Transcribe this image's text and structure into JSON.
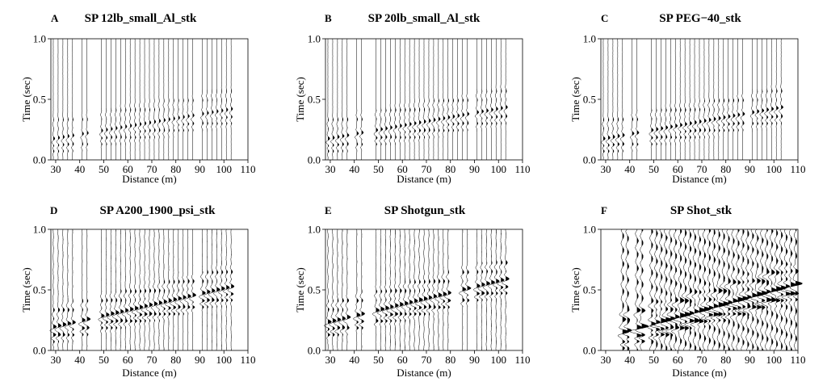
{
  "chart_data": [
    {
      "type": "scatter",
      "panel_label": "A",
      "title": "SP 12lb_small_Al_stk",
      "xlabel": "Distance (m)",
      "ylabel": "Time (sec)",
      "xlim": [
        28,
        110
      ],
      "ylim": [
        0.0,
        1.0
      ],
      "x_ticks": [
        30,
        40,
        50,
        60,
        70,
        80,
        90,
        100,
        110
      ],
      "y_ticks": [
        0.0,
        0.5,
        1.0
      ],
      "y_inverted": true,
      "trace_offsets_m": [
        29,
        31,
        33,
        35,
        37,
        41,
        43,
        49,
        51,
        53,
        55,
        57,
        59,
        61,
        63,
        65,
        67,
        69,
        71,
        73,
        75,
        77,
        79,
        81,
        83,
        85,
        87,
        91,
        93,
        95,
        97,
        99,
        101,
        103
      ],
      "arrival_start_s": 0.16,
      "moveout_s_per_m": 0.0033,
      "intensity": 0.45,
      "max_time_s": 0.6
    },
    {
      "type": "scatter",
      "panel_label": "B",
      "title": "SP 20lb_small_Al_stk",
      "xlabel": "Distance (m)",
      "ylabel": "Time (sec)",
      "xlim": [
        28,
        110
      ],
      "ylim": [
        0.0,
        1.0
      ],
      "x_ticks": [
        30,
        40,
        50,
        60,
        70,
        80,
        90,
        100,
        110
      ],
      "y_ticks": [
        0.0,
        0.5,
        1.0
      ],
      "y_inverted": true,
      "trace_offsets_m": [
        29,
        31,
        33,
        35,
        37,
        41,
        43,
        49,
        51,
        53,
        55,
        57,
        59,
        61,
        63,
        65,
        67,
        69,
        71,
        73,
        75,
        77,
        79,
        81,
        83,
        85,
        87,
        91,
        93,
        95,
        97,
        99,
        101,
        103
      ],
      "arrival_start_s": 0.16,
      "moveout_s_per_m": 0.0035,
      "intensity": 0.55,
      "max_time_s": 0.62
    },
    {
      "type": "scatter",
      "panel_label": "C",
      "title": "SP PEG−40_stk",
      "xlabel": "Distance (m)",
      "ylabel": "Time (sec)",
      "xlim": [
        28,
        110
      ],
      "ylim": [
        0.0,
        1.0
      ],
      "x_ticks": [
        30,
        40,
        50,
        60,
        70,
        80,
        90,
        100,
        110
      ],
      "y_ticks": [
        0.0,
        0.5,
        1.0
      ],
      "y_inverted": true,
      "trace_offsets_m": [
        29,
        31,
        33,
        35,
        37,
        41,
        43,
        49,
        51,
        53,
        55,
        57,
        59,
        61,
        63,
        65,
        67,
        69,
        71,
        73,
        75,
        77,
        79,
        81,
        83,
        85,
        87,
        91,
        93,
        95,
        97,
        99,
        101,
        103
      ],
      "arrival_start_s": 0.16,
      "moveout_s_per_m": 0.0035,
      "intensity": 0.6,
      "max_time_s": 0.65
    },
    {
      "type": "scatter",
      "panel_label": "D",
      "title": "SP A200_1900_psi_stk",
      "xlabel": "Distance (m)",
      "ylabel": "Time (sec)",
      "xlim": [
        28,
        110
      ],
      "ylim": [
        0.0,
        1.0
      ],
      "x_ticks": [
        30,
        40,
        50,
        60,
        70,
        80,
        90,
        100,
        110
      ],
      "y_ticks": [
        0.0,
        0.5,
        1.0
      ],
      "y_inverted": true,
      "trace_offsets_m": [
        29,
        31,
        33,
        35,
        37,
        41,
        43,
        49,
        51,
        53,
        55,
        57,
        59,
        61,
        63,
        65,
        67,
        69,
        71,
        73,
        75,
        77,
        79,
        81,
        83,
        85,
        87,
        91,
        93,
        95,
        97,
        99,
        101,
        103
      ],
      "arrival_start_s": 0.18,
      "moveout_s_per_m": 0.0045,
      "intensity": 0.95,
      "max_time_s": 1.0
    },
    {
      "type": "scatter",
      "panel_label": "E",
      "title": "SP Shotgun_stk",
      "xlabel": "Distance (m)",
      "ylabel": "Time (sec)",
      "xlim": [
        28,
        110
      ],
      "ylim": [
        0.0,
        1.0
      ],
      "x_ticks": [
        30,
        40,
        50,
        60,
        70,
        80,
        90,
        100,
        110
      ],
      "y_ticks": [
        0.0,
        0.5,
        1.0
      ],
      "y_inverted": true,
      "trace_offsets_m": [
        29,
        31,
        33,
        35,
        37,
        41,
        43,
        49,
        51,
        53,
        55,
        57,
        59,
        61,
        63,
        65,
        67,
        69,
        71,
        73,
        75,
        77,
        79,
        85,
        87,
        91,
        93,
        95,
        97,
        99,
        101,
        103
      ],
      "arrival_start_s": 0.22,
      "moveout_s_per_m": 0.0048,
      "intensity": 1.0,
      "max_time_s": 1.0
    },
    {
      "type": "scatter",
      "panel_label": "F",
      "title": "SP Shot_stk",
      "xlabel": "Distance (m)",
      "ylabel": "Time (sec)",
      "xlim": [
        28,
        110
      ],
      "ylim": [
        0.0,
        1.0
      ],
      "x_ticks": [
        30,
        40,
        50,
        60,
        70,
        80,
        90,
        100,
        110
      ],
      "y_ticks": [
        0.0,
        0.5,
        1.0
      ],
      "y_inverted": true,
      "trace_offsets_m": [
        37,
        39,
        43,
        45,
        49,
        51,
        53,
        55,
        57,
        59,
        61,
        63,
        65,
        67,
        69,
        71,
        73,
        75,
        77,
        79,
        81,
        83,
        85,
        87,
        89,
        91,
        93,
        95,
        97,
        99,
        101,
        103,
        105,
        107,
        109
      ],
      "arrival_start_s": 0.14,
      "moveout_s_per_m": 0.0055,
      "intensity": 1.6,
      "max_time_s": 1.0
    }
  ]
}
